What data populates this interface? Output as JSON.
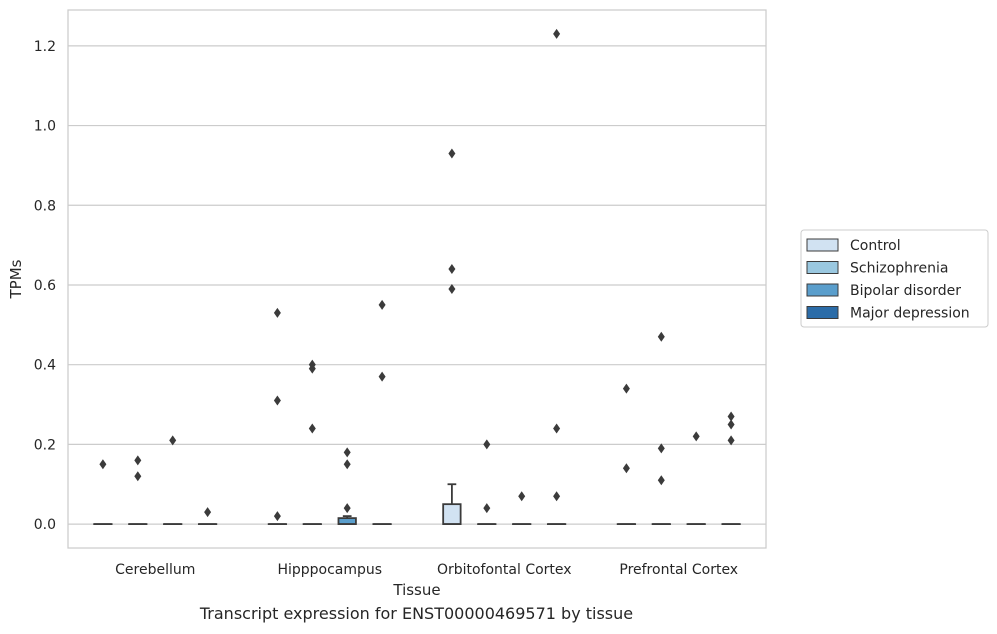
{
  "caption": "Transcript expression for ENST00000469571 by tissue",
  "chart_data": {
    "type": "box",
    "title": "",
    "xlabel": "Tissue",
    "ylabel": "TPMs",
    "ylim": [
      -0.06,
      1.29
    ],
    "yticks": [
      0.0,
      0.2,
      0.4,
      0.6,
      0.8,
      1.0,
      1.2
    ],
    "ytick_labels": [
      "0.0",
      "0.2",
      "0.4",
      "0.6",
      "0.8",
      "1.0",
      "1.2"
    ],
    "grid": "horizontal",
    "legend_position": "right",
    "categories": [
      "Cerebellum",
      "Hipppocampus",
      "Orbitofontal Cortex",
      "Prefrontal Cortex"
    ],
    "series": [
      {
        "name": "Control",
        "color": "#d1e2f2",
        "boxes": [
          {
            "q1": 0,
            "median": 0,
            "q3": 0,
            "whisker_low": 0,
            "whisker_high": 0,
            "outliers": [
              0.15
            ]
          },
          {
            "q1": 0,
            "median": 0,
            "q3": 0,
            "whisker_low": 0,
            "whisker_high": 0,
            "outliers": [
              0.53,
              0.31,
              0.02
            ]
          },
          {
            "q1": 0,
            "median": 0,
            "q3": 0.05,
            "whisker_low": 0,
            "whisker_high": 0.1,
            "outliers": [
              0.93,
              0.64,
              0.59
            ]
          },
          {
            "q1": 0,
            "median": 0,
            "q3": 0,
            "whisker_low": 0,
            "whisker_high": 0,
            "outliers": [
              0.34,
              0.14
            ]
          }
        ]
      },
      {
        "name": "Schizophrenia",
        "color": "#9ac8e0",
        "boxes": [
          {
            "q1": 0,
            "median": 0,
            "q3": 0,
            "whisker_low": 0,
            "whisker_high": 0,
            "outliers": [
              0.16,
              0.12
            ]
          },
          {
            "q1": 0,
            "median": 0,
            "q3": 0,
            "whisker_low": 0,
            "whisker_high": 0,
            "outliers": [
              0.4,
              0.39,
              0.24
            ]
          },
          {
            "q1": 0,
            "median": 0,
            "q3": 0,
            "whisker_low": 0,
            "whisker_high": 0,
            "outliers": [
              0.2,
              0.04
            ]
          },
          {
            "q1": 0,
            "median": 0,
            "q3": 0,
            "whisker_low": 0,
            "whisker_high": 0,
            "outliers": [
              0.47,
              0.19,
              0.11
            ]
          }
        ]
      },
      {
        "name": "Bipolar disorder",
        "color": "#5a9ecc",
        "boxes": [
          {
            "q1": 0,
            "median": 0,
            "q3": 0,
            "whisker_low": 0,
            "whisker_high": 0,
            "outliers": [
              0.21
            ]
          },
          {
            "q1": 0,
            "median": 0,
            "q3": 0.015,
            "whisker_low": 0,
            "whisker_high": 0.02,
            "outliers": [
              0.18,
              0.15,
              0.04
            ]
          },
          {
            "q1": 0,
            "median": 0,
            "q3": 0,
            "whisker_low": 0,
            "whisker_high": 0,
            "outliers": [
              0.07
            ]
          },
          {
            "q1": 0,
            "median": 0,
            "q3": 0,
            "whisker_low": 0,
            "whisker_high": 0,
            "outliers": [
              0.22
            ]
          }
        ]
      },
      {
        "name": "Major depression",
        "color": "#2b6ca8",
        "boxes": [
          {
            "q1": 0,
            "median": 0,
            "q3": 0,
            "whisker_low": 0,
            "whisker_high": 0,
            "outliers": [
              0.03
            ]
          },
          {
            "q1": 0,
            "median": 0,
            "q3": 0,
            "whisker_low": 0,
            "whisker_high": 0,
            "outliers": [
              0.55,
              0.37
            ]
          },
          {
            "q1": 0,
            "median": 0,
            "q3": 0,
            "whisker_low": 0,
            "whisker_high": 0,
            "outliers": [
              1.23,
              0.24,
              0.07
            ]
          },
          {
            "q1": 0,
            "median": 0,
            "q3": 0,
            "whisker_low": 0,
            "whisker_high": 0,
            "outliers": [
              0.27,
              0.25,
              0.21
            ]
          }
        ]
      }
    ]
  }
}
